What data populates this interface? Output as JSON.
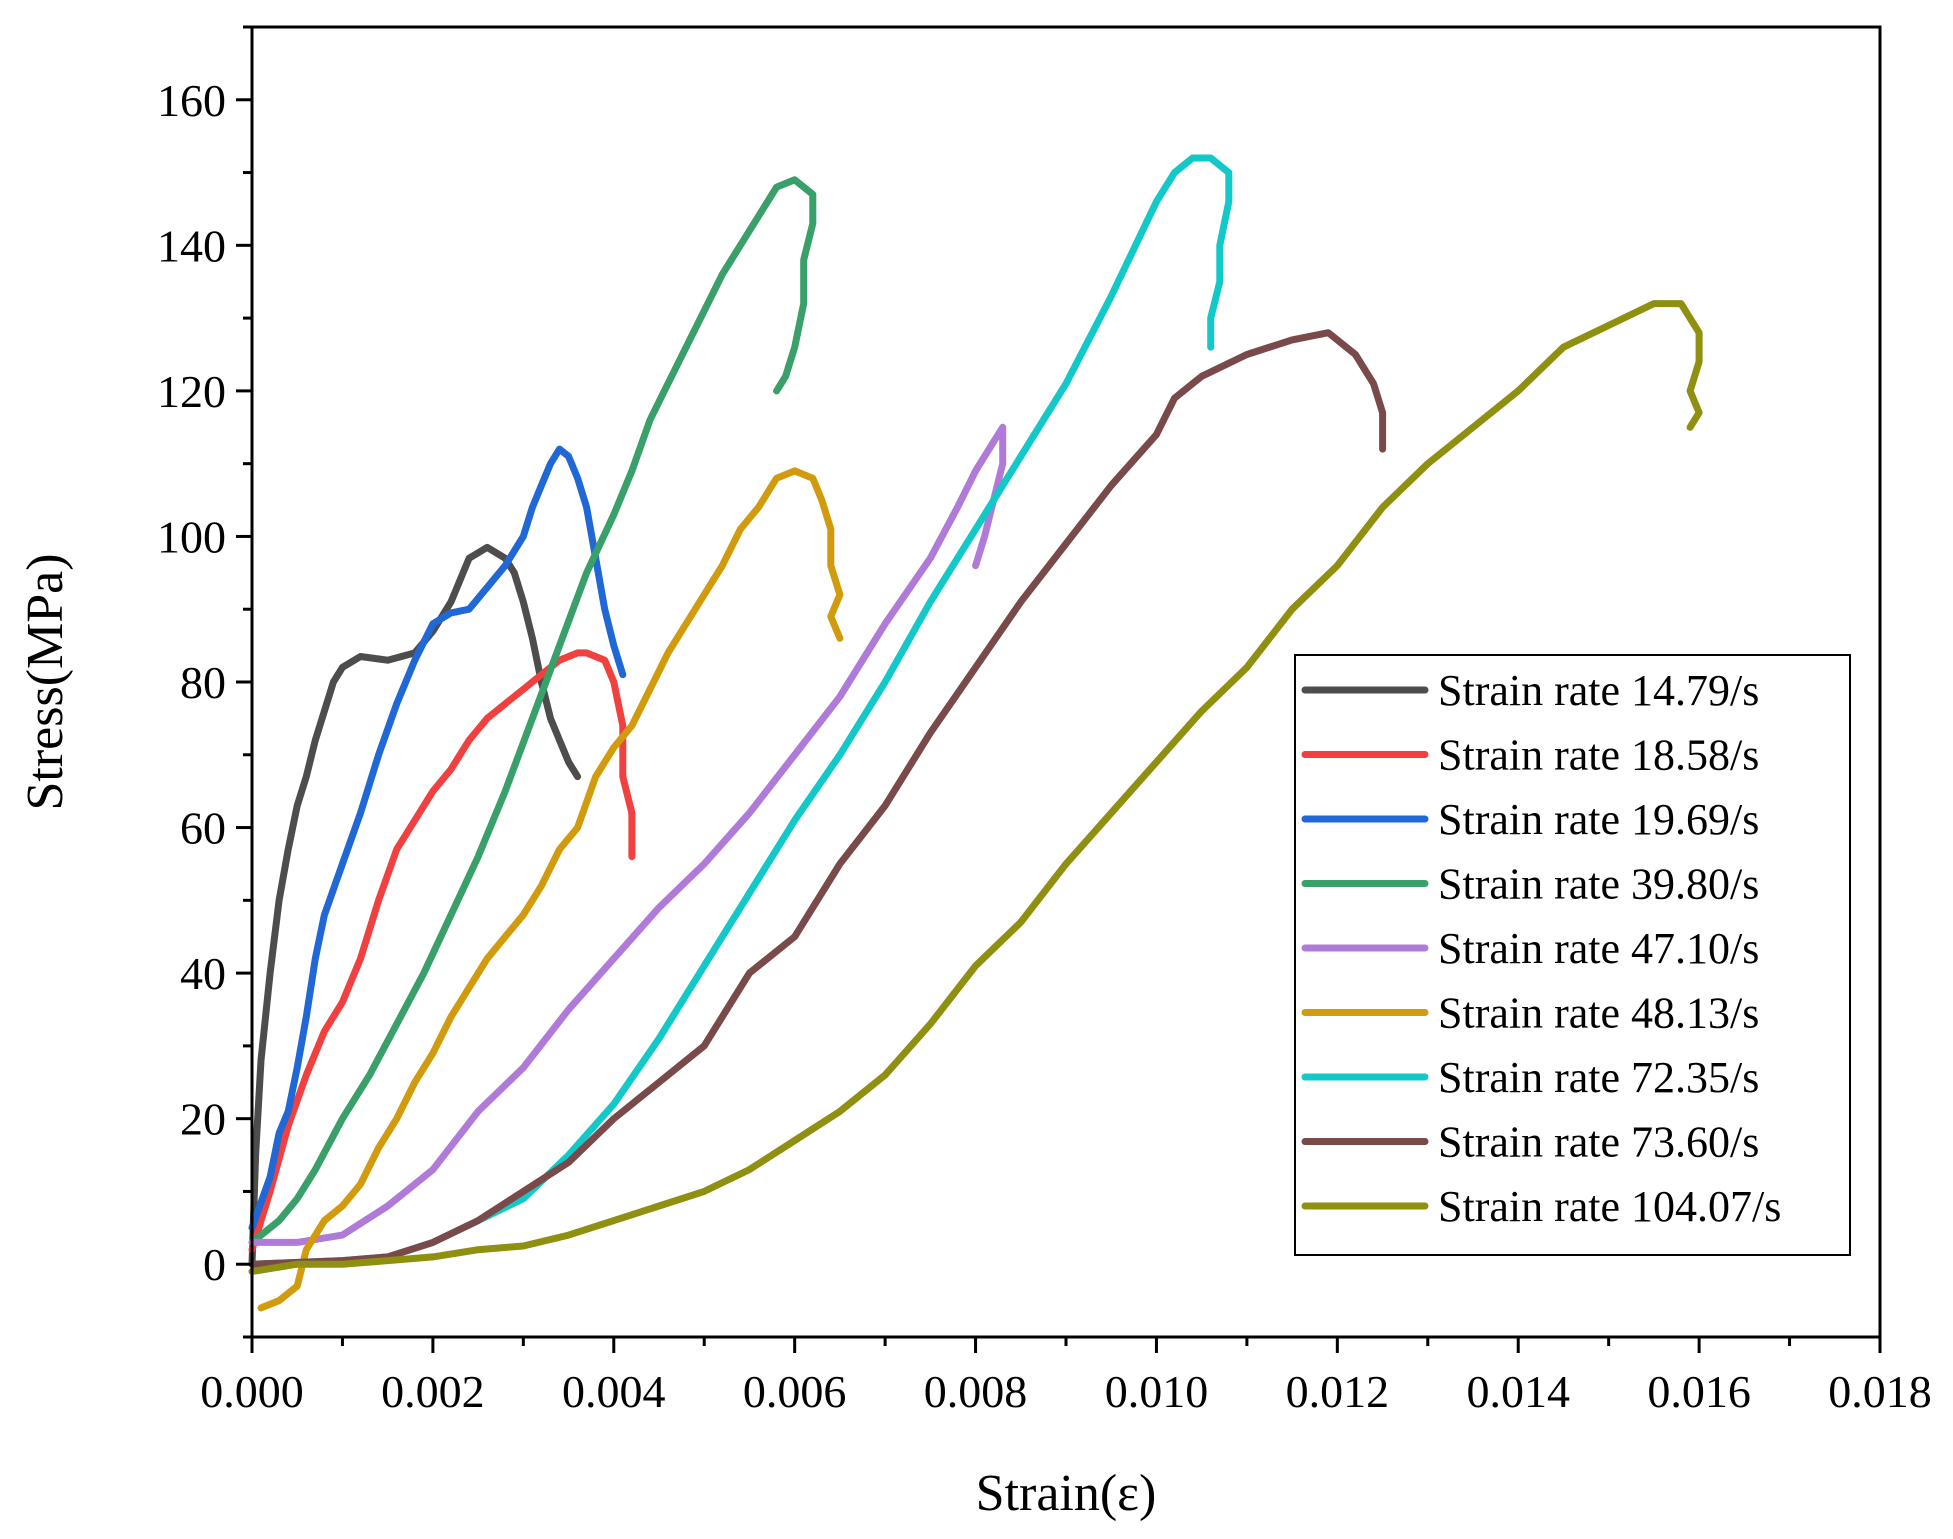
{
  "chart_data": {
    "type": "line",
    "title": "",
    "xlabel": "Strain(ε)",
    "ylabel": "Stress(MPa)",
    "xlim": [
      0,
      0.018
    ],
    "ylim": [
      -10,
      170
    ],
    "xticks": [
      0,
      0.002,
      0.004,
      0.006,
      0.008,
      0.01,
      0.012,
      0.014,
      0.016,
      0.018
    ],
    "xtick_labels": [
      "0.000",
      "0.002",
      "0.004",
      "0.006",
      "0.008",
      "0.010",
      "0.012",
      "0.014",
      "0.016",
      "0.018"
    ],
    "yticks": [
      0,
      20,
      40,
      60,
      80,
      100,
      120,
      140,
      160
    ],
    "ytick_labels": [
      "0",
      "20",
      "40",
      "60",
      "80",
      "100",
      "120",
      "140",
      "160"
    ],
    "grid": false,
    "legend_position": "right",
    "series": [
      {
        "name": "Strain rate 14.79/s",
        "color": "#4d4d4d",
        "points": [
          [
            0,
            0
          ],
          [
            4e-05,
            15
          ],
          [
            0.0001,
            28
          ],
          [
            0.0002,
            40
          ],
          [
            0.0003,
            50
          ],
          [
            0.0004,
            57
          ],
          [
            0.0005,
            63
          ],
          [
            0.0006,
            67
          ],
          [
            0.0007,
            72
          ],
          [
            0.0008,
            76
          ],
          [
            0.0009,
            80
          ],
          [
            0.001,
            82
          ],
          [
            0.0012,
            83.5
          ],
          [
            0.0015,
            83
          ],
          [
            0.0018,
            84
          ],
          [
            0.002,
            87
          ],
          [
            0.0022,
            91
          ],
          [
            0.0024,
            97
          ],
          [
            0.0026,
            98.5
          ],
          [
            0.0028,
            97
          ],
          [
            0.0029,
            95
          ],
          [
            0.003,
            91
          ],
          [
            0.0031,
            86
          ],
          [
            0.0032,
            80
          ],
          [
            0.0033,
            75
          ],
          [
            0.0034,
            72
          ],
          [
            0.0035,
            69
          ],
          [
            0.0036,
            67
          ]
        ]
      },
      {
        "name": "Strain rate 18.58/s",
        "color": "#f04040",
        "points": [
          [
            0,
            2
          ],
          [
            0.0002,
            10
          ],
          [
            0.0004,
            19
          ],
          [
            0.0006,
            26
          ],
          [
            0.0008,
            32
          ],
          [
            0.001,
            36
          ],
          [
            0.0012,
            42
          ],
          [
            0.0014,
            50
          ],
          [
            0.0016,
            57
          ],
          [
            0.0018,
            61
          ],
          [
            0.002,
            65
          ],
          [
            0.0022,
            68
          ],
          [
            0.0024,
            72
          ],
          [
            0.0026,
            75
          ],
          [
            0.0028,
            77
          ],
          [
            0.003,
            79
          ],
          [
            0.0032,
            81
          ],
          [
            0.0034,
            83
          ],
          [
            0.0036,
            84
          ],
          [
            0.0037,
            84
          ],
          [
            0.0039,
            83
          ],
          [
            0.004,
            80
          ],
          [
            0.0041,
            74
          ],
          [
            0.0041,
            67
          ],
          [
            0.0042,
            62
          ],
          [
            0.0042,
            56
          ]
        ]
      },
      {
        "name": "Strain rate 19.69/s",
        "color": "#1f68d6",
        "points": [
          [
            0,
            5
          ],
          [
            0.0002,
            12
          ],
          [
            0.0003,
            18
          ],
          [
            0.0004,
            21
          ],
          [
            0.0005,
            27
          ],
          [
            0.0006,
            34
          ],
          [
            0.0007,
            42
          ],
          [
            0.0008,
            48
          ],
          [
            0.001,
            55
          ],
          [
            0.0012,
            62
          ],
          [
            0.0014,
            70
          ],
          [
            0.0016,
            77
          ],
          [
            0.0018,
            83
          ],
          [
            0.002,
            88
          ],
          [
            0.0022,
            89.5
          ],
          [
            0.0024,
            90
          ],
          [
            0.0026,
            93
          ],
          [
            0.0028,
            96
          ],
          [
            0.003,
            100
          ],
          [
            0.0031,
            104
          ],
          [
            0.0032,
            107
          ],
          [
            0.0033,
            110
          ],
          [
            0.0034,
            112
          ],
          [
            0.0035,
            111
          ],
          [
            0.0036,
            108
          ],
          [
            0.0037,
            104
          ],
          [
            0.0038,
            97
          ],
          [
            0.0039,
            90
          ],
          [
            0.004,
            85
          ],
          [
            0.0041,
            81
          ]
        ]
      },
      {
        "name": "Strain rate 39.80/s",
        "color": "#38a068",
        "points": [
          [
            0,
            3
          ],
          [
            0.0003,
            6
          ],
          [
            0.0005,
            9
          ],
          [
            0.0007,
            13
          ],
          [
            0.001,
            20
          ],
          [
            0.0013,
            26
          ],
          [
            0.0016,
            33
          ],
          [
            0.0019,
            40
          ],
          [
            0.0022,
            48
          ],
          [
            0.0025,
            56
          ],
          [
            0.0028,
            65
          ],
          [
            0.0031,
            75
          ],
          [
            0.0034,
            85
          ],
          [
            0.0037,
            95
          ],
          [
            0.004,
            103
          ],
          [
            0.0042,
            109
          ],
          [
            0.0044,
            116
          ],
          [
            0.0046,
            121
          ],
          [
            0.0048,
            126
          ],
          [
            0.005,
            131
          ],
          [
            0.0052,
            136
          ],
          [
            0.0054,
            140
          ],
          [
            0.0056,
            144
          ],
          [
            0.0058,
            148
          ],
          [
            0.006,
            149
          ],
          [
            0.0062,
            147
          ],
          [
            0.0062,
            143
          ],
          [
            0.0061,
            138
          ],
          [
            0.0061,
            132
          ],
          [
            0.006,
            126
          ],
          [
            0.0059,
            122
          ],
          [
            0.0058,
            120
          ]
        ]
      },
      {
        "name": "Strain rate 47.10/s",
        "color": "#b07ad8",
        "points": [
          [
            0,
            3
          ],
          [
            0.0005,
            3
          ],
          [
            0.001,
            4
          ],
          [
            0.0015,
            8
          ],
          [
            0.002,
            13
          ],
          [
            0.0025,
            21
          ],
          [
            0.003,
            27
          ],
          [
            0.0035,
            35
          ],
          [
            0.004,
            42
          ],
          [
            0.0045,
            49
          ],
          [
            0.005,
            55
          ],
          [
            0.0055,
            62
          ],
          [
            0.006,
            70
          ],
          [
            0.0065,
            78
          ],
          [
            0.007,
            88
          ],
          [
            0.0075,
            97
          ],
          [
            0.0078,
            104
          ],
          [
            0.008,
            109
          ],
          [
            0.0082,
            113
          ],
          [
            0.0083,
            115
          ],
          [
            0.0083,
            110
          ],
          [
            0.0082,
            105
          ],
          [
            0.0081,
            100
          ],
          [
            0.008,
            96
          ]
        ]
      },
      {
        "name": "Strain rate 48.13/s",
        "color": "#d19b0d",
        "points": [
          [
            0.0001,
            -6
          ],
          [
            0.0003,
            -5
          ],
          [
            0.0005,
            -3
          ],
          [
            0.0006,
            2
          ],
          [
            0.0008,
            6
          ],
          [
            0.001,
            8
          ],
          [
            0.0012,
            11
          ],
          [
            0.0014,
            16
          ],
          [
            0.0016,
            20
          ],
          [
            0.0018,
            25
          ],
          [
            0.002,
            29
          ],
          [
            0.0022,
            34
          ],
          [
            0.0024,
            38
          ],
          [
            0.0026,
            42
          ],
          [
            0.0028,
            45
          ],
          [
            0.003,
            48
          ],
          [
            0.0032,
            52
          ],
          [
            0.0034,
            57
          ],
          [
            0.0036,
            60
          ],
          [
            0.0038,
            67
          ],
          [
            0.004,
            71
          ],
          [
            0.0042,
            74
          ],
          [
            0.0044,
            79
          ],
          [
            0.0046,
            84
          ],
          [
            0.0048,
            88
          ],
          [
            0.005,
            92
          ],
          [
            0.0052,
            96
          ],
          [
            0.0054,
            101
          ],
          [
            0.0056,
            104
          ],
          [
            0.0058,
            108
          ],
          [
            0.006,
            109
          ],
          [
            0.0062,
            108
          ],
          [
            0.0063,
            105
          ],
          [
            0.0064,
            101
          ],
          [
            0.0064,
            96
          ],
          [
            0.0065,
            92
          ],
          [
            0.0064,
            89
          ],
          [
            0.0065,
            86
          ]
        ]
      },
      {
        "name": "Strain rate 72.35/s",
        "color": "#12c8c8",
        "points": [
          [
            0,
            0
          ],
          [
            0.001,
            0.5
          ],
          [
            0.0015,
            1
          ],
          [
            0.002,
            3
          ],
          [
            0.0025,
            6
          ],
          [
            0.003,
            9
          ],
          [
            0.0035,
            15
          ],
          [
            0.004,
            22
          ],
          [
            0.0045,
            31
          ],
          [
            0.005,
            41
          ],
          [
            0.0055,
            51
          ],
          [
            0.006,
            61
          ],
          [
            0.0065,
            70
          ],
          [
            0.007,
            80
          ],
          [
            0.0075,
            91
          ],
          [
            0.008,
            101
          ],
          [
            0.0085,
            111
          ],
          [
            0.009,
            121
          ],
          [
            0.0095,
            133
          ],
          [
            0.01,
            146
          ],
          [
            0.0102,
            150
          ],
          [
            0.0104,
            152
          ],
          [
            0.0106,
            152
          ],
          [
            0.0108,
            150
          ],
          [
            0.0108,
            146
          ],
          [
            0.0107,
            140
          ],
          [
            0.0107,
            135
          ],
          [
            0.0106,
            130
          ],
          [
            0.0106,
            126
          ]
        ]
      },
      {
        "name": "Strain rate 73.60/s",
        "color": "#7a4a4a",
        "points": [
          [
            0,
            0
          ],
          [
            0.001,
            0.5
          ],
          [
            0.0015,
            1
          ],
          [
            0.002,
            3
          ],
          [
            0.0025,
            6
          ],
          [
            0.003,
            10
          ],
          [
            0.0035,
            14
          ],
          [
            0.004,
            20
          ],
          [
            0.0045,
            25
          ],
          [
            0.005,
            30
          ],
          [
            0.0055,
            40
          ],
          [
            0.006,
            45
          ],
          [
            0.0065,
            55
          ],
          [
            0.007,
            63
          ],
          [
            0.0075,
            73
          ],
          [
            0.008,
            82
          ],
          [
            0.0085,
            91
          ],
          [
            0.009,
            99
          ],
          [
            0.0095,
            107
          ],
          [
            0.01,
            114
          ],
          [
            0.0102,
            119
          ],
          [
            0.0105,
            122
          ],
          [
            0.011,
            125
          ],
          [
            0.0115,
            127
          ],
          [
            0.0119,
            128
          ],
          [
            0.0122,
            125
          ],
          [
            0.0124,
            121
          ],
          [
            0.0125,
            117
          ],
          [
            0.0125,
            112
          ]
        ]
      },
      {
        "name": "Strain rate 104.07/s",
        "color": "#8f8f10",
        "points": [
          [
            0,
            -1
          ],
          [
            0.0005,
            0
          ],
          [
            0.001,
            0
          ],
          [
            0.0015,
            0.5
          ],
          [
            0.002,
            1
          ],
          [
            0.0025,
            2
          ],
          [
            0.003,
            2.5
          ],
          [
            0.0035,
            4
          ],
          [
            0.004,
            6
          ],
          [
            0.0045,
            8
          ],
          [
            0.005,
            10
          ],
          [
            0.0055,
            13
          ],
          [
            0.006,
            17
          ],
          [
            0.0065,
            21
          ],
          [
            0.007,
            26
          ],
          [
            0.0075,
            33
          ],
          [
            0.008,
            41
          ],
          [
            0.0085,
            47
          ],
          [
            0.009,
            55
          ],
          [
            0.0095,
            62
          ],
          [
            0.01,
            69
          ],
          [
            0.0105,
            76
          ],
          [
            0.011,
            82
          ],
          [
            0.0115,
            90
          ],
          [
            0.012,
            96
          ],
          [
            0.0125,
            104
          ],
          [
            0.013,
            110
          ],
          [
            0.0135,
            115
          ],
          [
            0.014,
            120
          ],
          [
            0.0145,
            126
          ],
          [
            0.015,
            129
          ],
          [
            0.0155,
            132
          ],
          [
            0.0158,
            132
          ],
          [
            0.016,
            128
          ],
          [
            0.016,
            124
          ],
          [
            0.0159,
            120
          ],
          [
            0.016,
            117
          ],
          [
            0.0159,
            115
          ]
        ]
      }
    ]
  }
}
